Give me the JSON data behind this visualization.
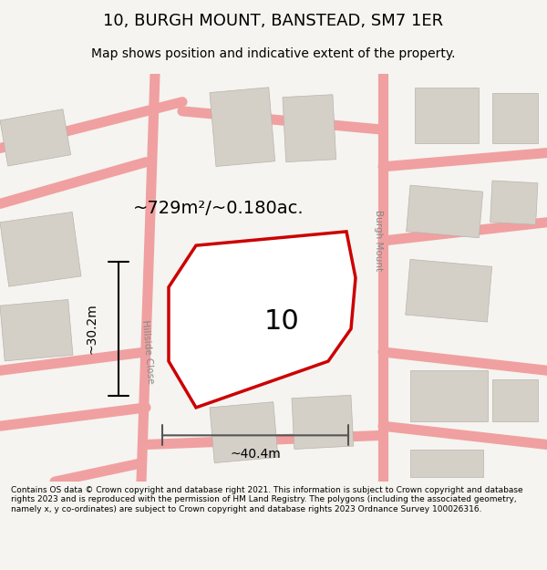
{
  "title": "10, BURGH MOUNT, BANSTEAD, SM7 1ER",
  "subtitle": "Map shows position and indicative extent of the property.",
  "footer": "Contains OS data © Crown copyright and database right 2021. This information is subject to Crown copyright and database rights 2023 and is reproduced with the permission of HM Land Registry. The polygons (including the associated geometry, namely x, y co-ordinates) are subject to Crown copyright and database rights 2023 Ordnance Survey 100026316.",
  "area_label": "~729m²/~0.180ac.",
  "property_number": "10",
  "width_label": "~40.4m",
  "height_label": "~30.2m",
  "bg_color": "#f0eeea",
  "map_bg": "#f5f4f0",
  "property_fill": "#ffffff",
  "property_edge": "#dd0000",
  "road_color": "#f0c8c8",
  "building_color": "#d8d4cc",
  "street_label_hillside": "Hillside Close",
  "street_label_burgh": "Burgh Mount"
}
